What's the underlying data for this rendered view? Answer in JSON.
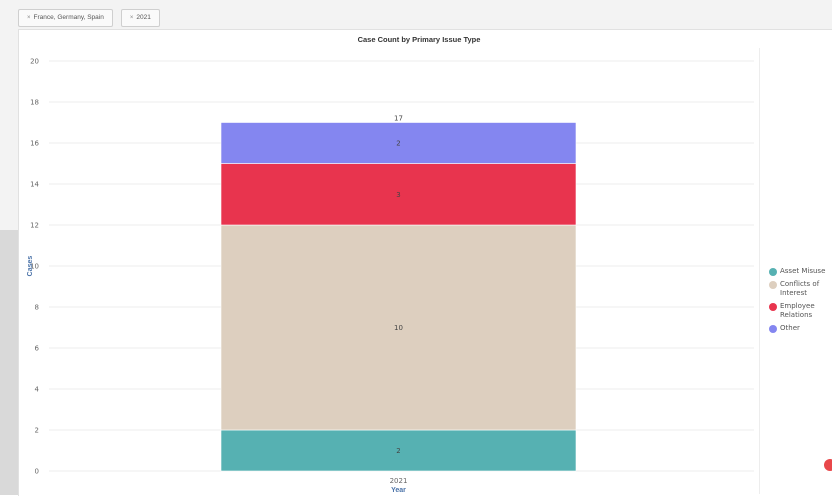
{
  "filters": [
    {
      "label": "France, Germany, Spain",
      "remove_icon": "close-icon"
    },
    {
      "label": "2021",
      "remove_icon": "close-icon"
    }
  ],
  "colors": {
    "asset_misuse": "#56b1b2",
    "conflicts_of_interest": "#ddcfbf",
    "employee_relations": "#e8344e",
    "other": "#8486f0",
    "grid": "#ececec",
    "axis_title": "#4a72a8"
  },
  "chart_data": {
    "type": "bar",
    "stacked": true,
    "title": "Case Count by Primary Issue Type",
    "xlabel": "Year",
    "ylabel": "Cases",
    "categories": [
      "2021"
    ],
    "ylim": [
      0,
      20
    ],
    "yticks": [
      0,
      2,
      4,
      6,
      8,
      10,
      12,
      14,
      16,
      18,
      20
    ],
    "series": [
      {
        "name": "Asset Misuse",
        "values": [
          2
        ],
        "color": "#56b1b2"
      },
      {
        "name": "Conflicts of Interest",
        "values": [
          10
        ],
        "color": "#ddcfbf"
      },
      {
        "name": "Employee Relations",
        "values": [
          3
        ],
        "color": "#e8344e"
      },
      {
        "name": "Other",
        "values": [
          2
        ],
        "color": "#8486f0"
      }
    ],
    "totals": [
      17
    ],
    "grid": true,
    "legend_position": "right"
  }
}
